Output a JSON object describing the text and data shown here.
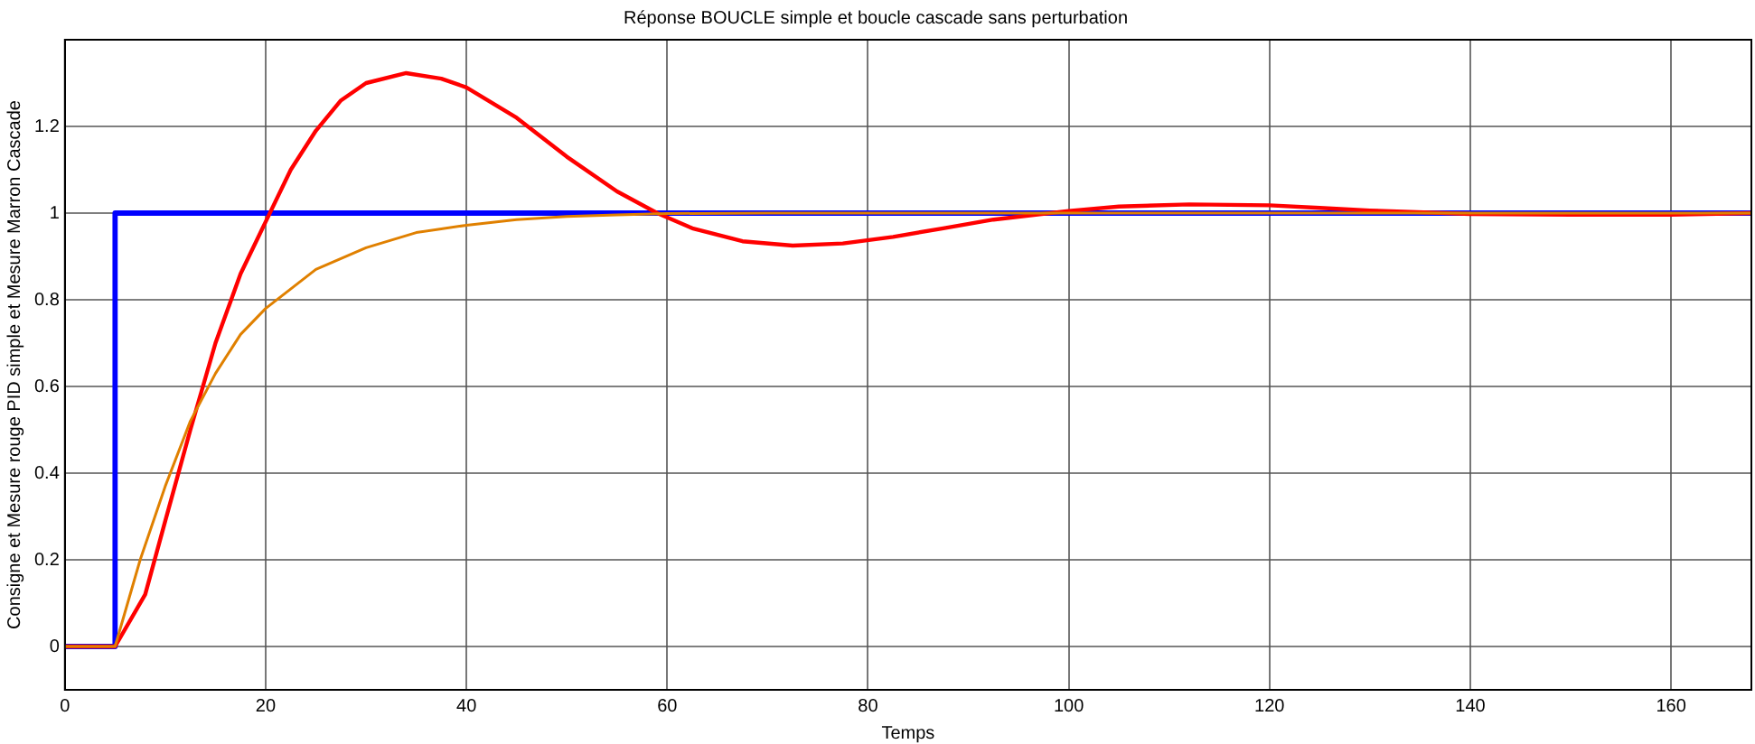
{
  "chart_data": {
    "type": "line",
    "title": "Réponse BOUCLE simple et boucle cascade sans perturbation",
    "xlabel": "Temps",
    "ylabel": "Consigne et Mesure rouge PID simple et Mesure Marron Cascade",
    "xlim": [
      0,
      168
    ],
    "xticks": [
      0,
      20,
      40,
      60,
      80,
      100,
      120,
      140,
      160
    ],
    "ylim": [
      -0.1,
      1.4
    ],
    "yticks": [
      0,
      0.2,
      0.4,
      0.6,
      0.8,
      1,
      1.2
    ],
    "grid": true,
    "legend": false,
    "marker": "none",
    "line_style": "solid",
    "series": [
      {
        "color": "#0000ff",
        "x": [
          0,
          5,
          5,
          168
        ],
        "values": [
          0,
          0,
          1,
          1
        ]
      },
      {
        "color": "#ff0000",
        "x": [
          0,
          5,
          8,
          10,
          12.5,
          15,
          17.5,
          20,
          22.5,
          25,
          27.5,
          30,
          34,
          37.5,
          40,
          45,
          50,
          55,
          59,
          62.5,
          67.5,
          72.5,
          77.5,
          82.5,
          87.5,
          92.5,
          100,
          105,
          112,
          120,
          125,
          130,
          140,
          150,
          160,
          168
        ],
        "values": [
          0,
          0,
          0.12,
          0.29,
          0.5,
          0.7,
          0.86,
          0.98,
          1.1,
          1.19,
          1.26,
          1.3,
          1.323,
          1.31,
          1.29,
          1.22,
          1.13,
          1.05,
          1,
          0.965,
          0.935,
          0.925,
          0.93,
          0.945,
          0.965,
          0.985,
          1.005,
          1.015,
          1.02,
          1.018,
          1.012,
          1.006,
          0.998,
          0.996,
          0.996,
          1
        ]
      },
      {
        "color": "#e08000",
        "x": [
          0,
          5,
          7.5,
          10,
          12.5,
          15,
          17.5,
          20,
          25,
          30,
          35,
          40,
          45,
          50,
          55,
          60,
          70,
          168
        ],
        "values": [
          0,
          0,
          0.2,
          0.37,
          0.52,
          0.63,
          0.72,
          0.78,
          0.87,
          0.92,
          0.955,
          0.972,
          0.985,
          0.992,
          0.996,
          0.999,
          1,
          1
        ]
      }
    ]
  }
}
